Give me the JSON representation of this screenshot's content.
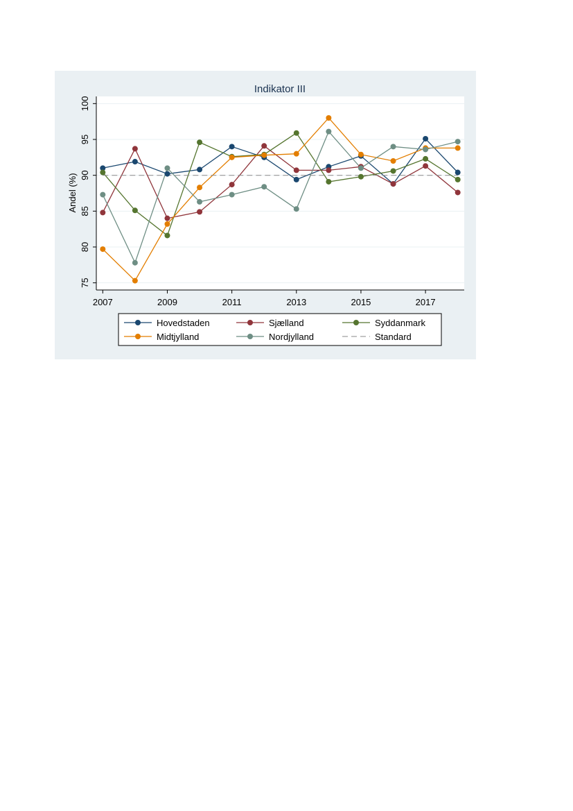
{
  "chart_data": {
    "type": "line",
    "title": "Indikator III",
    "xlabel": "",
    "ylabel": "Andel (%)",
    "ylim": [
      74,
      101
    ],
    "xlim": [
      2006.8,
      2018.2
    ],
    "x": [
      2007,
      2008,
      2009,
      2010,
      2011,
      2012,
      2013,
      2014,
      2015,
      2016,
      2017,
      2018
    ],
    "xticks": [
      2007,
      2009,
      2011,
      2013,
      2015,
      2017
    ],
    "yticks": [
      75,
      80,
      85,
      90,
      95,
      100
    ],
    "grid": true,
    "legend_position": "bottom",
    "series": [
      {
        "name": "Hovedstaden",
        "color": "#1a476f",
        "values": [
          91.0,
          91.9,
          90.2,
          90.8,
          94.0,
          92.5,
          89.4,
          91.2,
          92.7,
          88.8,
          95.1,
          90.4
        ]
      },
      {
        "name": "Sjælland",
        "color": "#90353b",
        "values": [
          84.8,
          93.7,
          84.0,
          84.9,
          88.7,
          94.1,
          90.7,
          90.7,
          91.2,
          88.8,
          91.3,
          87.6
        ]
      },
      {
        "name": "Syddanmark",
        "color": "#55752f",
        "values": [
          90.4,
          85.1,
          81.6,
          94.6,
          92.6,
          92.9,
          95.9,
          89.1,
          89.8,
          90.6,
          92.3,
          89.4
        ]
      },
      {
        "name": "Midtjylland",
        "color": "#e37e00",
        "values": [
          79.7,
          75.3,
          83.2,
          88.3,
          92.5,
          92.8,
          93.0,
          98.0,
          92.9,
          92.0,
          93.8,
          93.8
        ]
      },
      {
        "name": "Nordjylland",
        "color": "#6e8e84",
        "values": [
          87.3,
          77.8,
          91.0,
          86.3,
          87.3,
          88.4,
          85.3,
          96.1,
          91.0,
          94.0,
          93.6,
          94.7
        ]
      },
      {
        "name": "Standard",
        "color": "#8a8a8a",
        "dashed": true,
        "values": [
          90,
          90,
          90,
          90,
          90,
          90,
          90,
          90,
          90,
          90,
          90,
          90
        ]
      }
    ]
  }
}
